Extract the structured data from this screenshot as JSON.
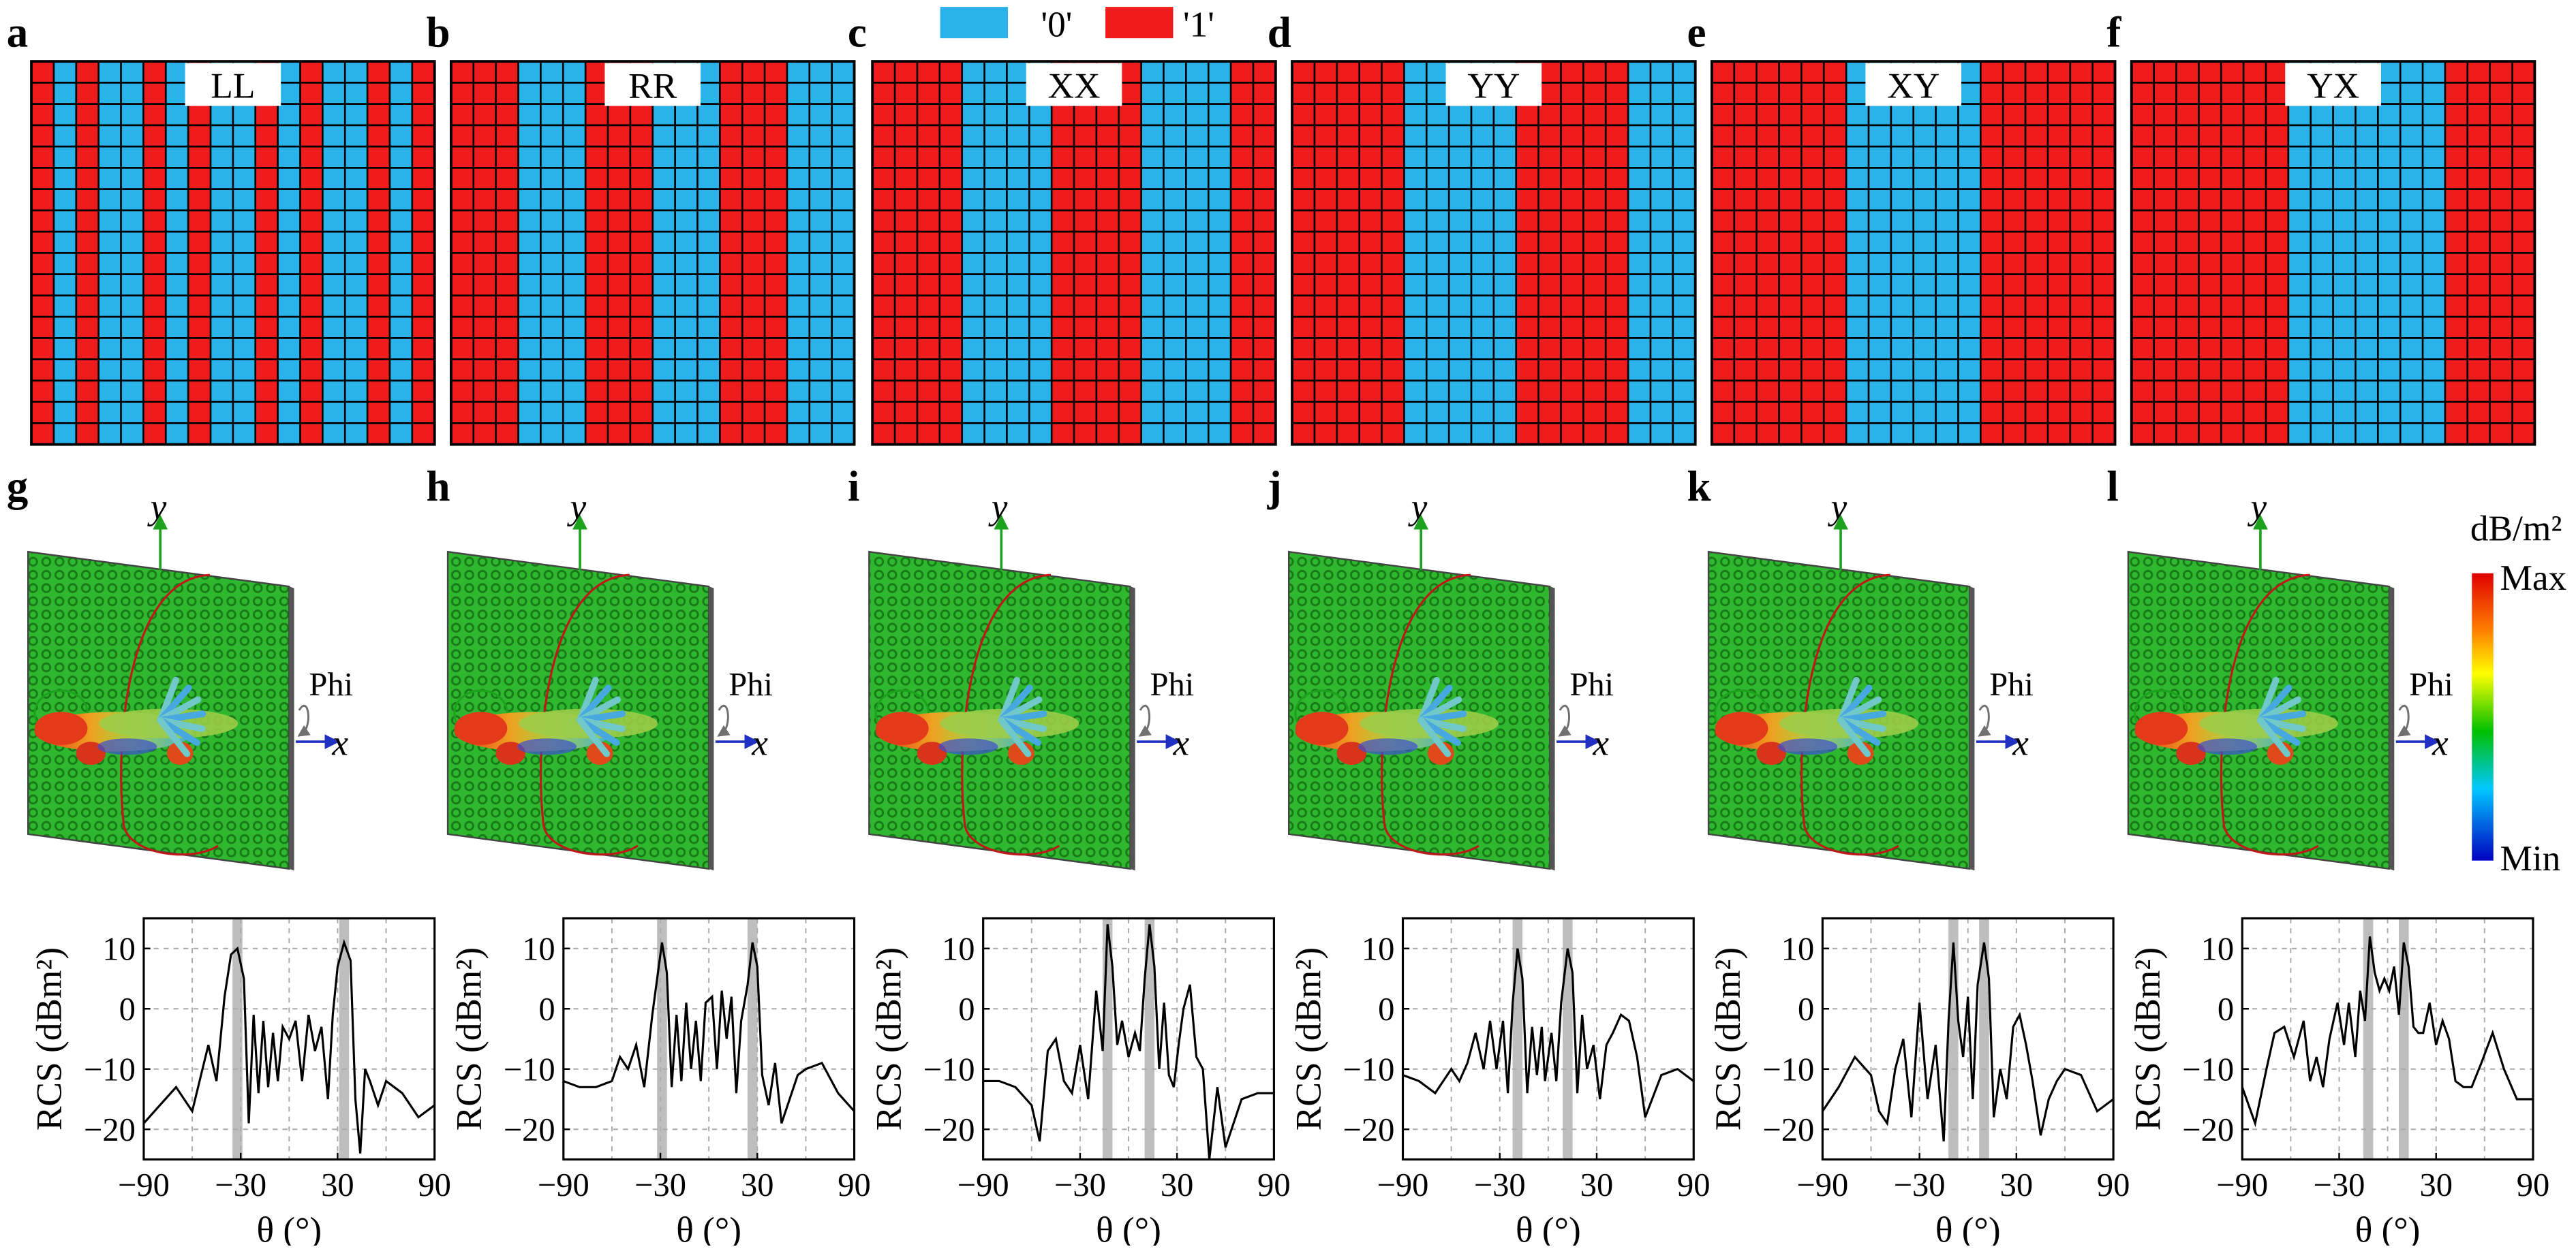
{
  "legend": {
    "items": [
      {
        "label": "'0'",
        "color": "#29B3EA"
      },
      {
        "label": "'1'",
        "color": "#EE1C1C"
      }
    ]
  },
  "colors": {
    "zero": "#29B3EA",
    "one": "#EE1C1C",
    "grid_line": "#000000",
    "board": "#2FB82F",
    "board_dot": "#177A17",
    "highlight": "#BEBEBE"
  },
  "colorbar": {
    "unit": "dB/m²",
    "max_label": "Max",
    "min_label": "Min"
  },
  "axis_labels": {
    "y": "y",
    "x": "x",
    "phi": "Phi"
  },
  "panels_top": [
    {
      "letter": "a",
      "label": "LL",
      "pattern": [
        1,
        0,
        1,
        0,
        0,
        1,
        0,
        1,
        0,
        0,
        1,
        0,
        1,
        0,
        0,
        1,
        0,
        1
      ]
    },
    {
      "letter": "b",
      "label": "RR",
      "pattern": [
        1,
        1,
        1,
        0,
        0,
        0,
        1,
        1,
        1,
        0,
        0,
        0,
        1,
        1,
        1,
        0,
        0,
        0
      ]
    },
    {
      "letter": "c",
      "label": "XX",
      "pattern": [
        1,
        1,
        1,
        1,
        0,
        0,
        0,
        0,
        1,
        1,
        1,
        1,
        0,
        0,
        0,
        0,
        1,
        1
      ]
    },
    {
      "letter": "d",
      "label": "YY",
      "pattern": [
        1,
        1,
        1,
        1,
        1,
        0,
        0,
        0,
        0,
        0,
        1,
        1,
        1,
        1,
        1,
        0,
        0,
        0
      ]
    },
    {
      "letter": "e",
      "label": "XY",
      "pattern": [
        1,
        1,
        1,
        1,
        1,
        1,
        0,
        0,
        0,
        0,
        0,
        0,
        1,
        1,
        1,
        1,
        1,
        1
      ]
    },
    {
      "letter": "f",
      "label": "YX",
      "pattern": [
        1,
        1,
        1,
        1,
        1,
        1,
        1,
        0,
        0,
        0,
        0,
        0,
        0,
        0,
        1,
        1,
        1,
        1
      ]
    }
  ],
  "panels_mid": [
    "g",
    "h",
    "i",
    "j",
    "k",
    "l"
  ],
  "chart_data": [
    {
      "letter": "g",
      "type": "line",
      "xlabel": "θ (°)",
      "ylabel": "RCS (dBm²)",
      "xlim": [
        -90,
        90
      ],
      "ylim": [
        -25,
        15
      ],
      "xticks": [
        -90,
        -30,
        30,
        90
      ],
      "yticks": [
        10,
        0,
        -10,
        -20
      ],
      "highlights": [
        -32,
        34
      ],
      "x": [
        -90,
        -80,
        -70,
        -60,
        -50,
        -45,
        -40,
        -36,
        -32,
        -28,
        -25,
        -22,
        -19,
        -16,
        -13,
        -10,
        -7,
        -4,
        0,
        4,
        8,
        12,
        16,
        20,
        24,
        27,
        30,
        34,
        38,
        41,
        44,
        47,
        50,
        55,
        60,
        70,
        80,
        90
      ],
      "y": [
        -19,
        -16,
        -13,
        -17,
        -6,
        -12,
        2,
        9,
        10,
        5,
        -19,
        -1,
        -14,
        -2,
        -13,
        -4,
        -12,
        -3,
        -5,
        -2,
        -12,
        -1,
        -7,
        -3,
        -15,
        -1,
        7,
        11,
        8,
        -15,
        -24,
        -10,
        -12,
        -16,
        -12,
        -14,
        -18,
        -16
      ]
    },
    {
      "letter": "h",
      "type": "line",
      "xlabel": "θ (°)",
      "ylabel": "RCS (dBm²)",
      "xlim": [
        -90,
        90
      ],
      "ylim": [
        -25,
        15
      ],
      "xticks": [
        -90,
        -30,
        30,
        90
      ],
      "yticks": [
        10,
        0,
        -10,
        -20
      ],
      "highlights": [
        -29,
        27
      ],
      "x": [
        -90,
        -80,
        -70,
        -60,
        -55,
        -50,
        -45,
        -40,
        -35,
        -32,
        -29,
        -26,
        -23,
        -20,
        -17,
        -14,
        -11,
        -8,
        -5,
        -2,
        2,
        5,
        8,
        11,
        14,
        17,
        20,
        24,
        27,
        30,
        33,
        37,
        41,
        45,
        50,
        55,
        60,
        70,
        80,
        90
      ],
      "y": [
        -12,
        -13,
        -13,
        -12,
        -8,
        -10,
        -6,
        -13,
        -1,
        5,
        11,
        6,
        -13,
        -1,
        -12,
        1,
        -10,
        -2,
        -12,
        1,
        2,
        -10,
        3,
        -5,
        2,
        -14,
        -2,
        4,
        11,
        7,
        -11,
        -16,
        -9,
        -19,
        -15,
        -11,
        -10,
        -9,
        -14,
        -17
      ]
    },
    {
      "letter": "i",
      "type": "line",
      "xlabel": "θ (°)",
      "ylabel": "RCS (dBm²)",
      "xlim": [
        -90,
        90
      ],
      "ylim": [
        -25,
        15
      ],
      "xticks": [
        -90,
        -30,
        30,
        90
      ],
      "yticks": [
        10,
        0,
        -10,
        -20
      ],
      "highlights": [
        -13,
        13
      ],
      "x": [
        -90,
        -80,
        -70,
        -60,
        -55,
        -50,
        -45,
        -40,
        -35,
        -30,
        -25,
        -20,
        -16,
        -13,
        -10,
        -7,
        -4,
        0,
        4,
        7,
        10,
        13,
        16,
        19,
        22,
        25,
        28,
        31,
        34,
        38,
        42,
        46,
        50,
        55,
        60,
        70,
        80,
        90
      ],
      "y": [
        -12,
        -12,
        -13,
        -16,
        -22,
        -7,
        -5,
        -12,
        -14,
        -6,
        -15,
        3,
        -7,
        14,
        7,
        -6,
        -2,
        -8,
        -4,
        -7,
        5,
        14,
        7,
        -10,
        1,
        -11,
        -13,
        -6,
        0,
        4,
        -8,
        -10,
        -25,
        -13,
        -23,
        -15,
        -14,
        -14
      ]
    },
    {
      "letter": "j",
      "type": "line",
      "xlabel": "θ (°)",
      "ylabel": "RCS (dBm²)",
      "xlim": [
        -90,
        90
      ],
      "ylim": [
        -25,
        15
      ],
      "xticks": [
        -90,
        -30,
        30,
        90
      ],
      "yticks": [
        10,
        0,
        -10,
        -20
      ],
      "highlights": [
        -19,
        12
      ],
      "x": [
        -90,
        -80,
        -70,
        -60,
        -55,
        -50,
        -45,
        -40,
        -36,
        -32,
        -28,
        -25,
        -22,
        -19,
        -16,
        -13,
        -10,
        -7,
        -4,
        -2,
        2,
        5,
        8,
        12,
        15,
        18,
        21,
        24,
        28,
        32,
        36,
        40,
        45,
        50,
        55,
        60,
        70,
        80,
        90
      ],
      "y": [
        -11,
        -12,
        -14,
        -10,
        -12,
        -9,
        -4,
        -10,
        -2,
        -10,
        -2,
        -14,
        1,
        10,
        5,
        -14,
        -3,
        -11,
        -3,
        -12,
        -4,
        -12,
        1,
        10,
        6,
        -14,
        -1,
        -10,
        -6,
        -15,
        -6,
        -4,
        -1,
        -2,
        -8,
        -18,
        -11,
        -10,
        -12
      ]
    },
    {
      "letter": "k",
      "type": "line",
      "xlabel": "θ (°)",
      "ylabel": "RCS (dBm²)",
      "xlim": [
        -90,
        90
      ],
      "ylim": [
        -25,
        15
      ],
      "xticks": [
        -90,
        -30,
        30,
        90
      ],
      "yticks": [
        10,
        0,
        -10,
        -20
      ],
      "highlights": [
        -9,
        10
      ],
      "x": [
        -90,
        -80,
        -70,
        -60,
        -55,
        -50,
        -45,
        -40,
        -35,
        -30,
        -25,
        -20,
        -15,
        -12,
        -9,
        -6,
        -3,
        0,
        3,
        6,
        10,
        13,
        16,
        20,
        24,
        28,
        32,
        36,
        40,
        45,
        50,
        55,
        60,
        70,
        80,
        90
      ],
      "y": [
        -17,
        -13,
        -8,
        -11,
        -17,
        -19,
        -10,
        -5,
        -18,
        1,
        -15,
        -6,
        -22,
        -2,
        11,
        -2,
        -8,
        2,
        -15,
        4,
        11,
        5,
        -18,
        -10,
        -15,
        -3,
        -1,
        -6,
        -12,
        -21,
        -15,
        -12,
        -10,
        -11,
        -17,
        -15
      ]
    },
    {
      "letter": "l",
      "type": "line",
      "xlabel": "θ (°)",
      "ylabel": "RCS (dBm²)",
      "xlim": [
        -90,
        90
      ],
      "ylim": [
        -25,
        15
      ],
      "xticks": [
        -90,
        -30,
        30,
        90
      ],
      "yticks": [
        10,
        0,
        -10,
        -20
      ],
      "highlights": [
        -12,
        10
      ],
      "x": [
        -90,
        -82,
        -75,
        -70,
        -64,
        -58,
        -52,
        -48,
        -44,
        -40,
        -36,
        -31,
        -27,
        -24,
        -20,
        -17,
        -14,
        -11,
        -8,
        -5,
        -2,
        1,
        4,
        7,
        10,
        13,
        16,
        19,
        22,
        26,
        30,
        34,
        38,
        42,
        47,
        52,
        58,
        65,
        72,
        80,
        90
      ],
      "y": [
        -13,
        -19,
        -10,
        -4,
        -3,
        -8,
        -2,
        -12,
        -8,
        -13,
        -5,
        1,
        -6,
        1,
        -8,
        3,
        -2,
        12,
        6,
        3,
        5,
        3,
        7,
        -1,
        11,
        7,
        -3,
        -4,
        -4,
        1,
        -6,
        -2,
        -5,
        -12,
        -13,
        -13,
        -9,
        -4,
        -10,
        -15,
        -15
      ]
    }
  ]
}
